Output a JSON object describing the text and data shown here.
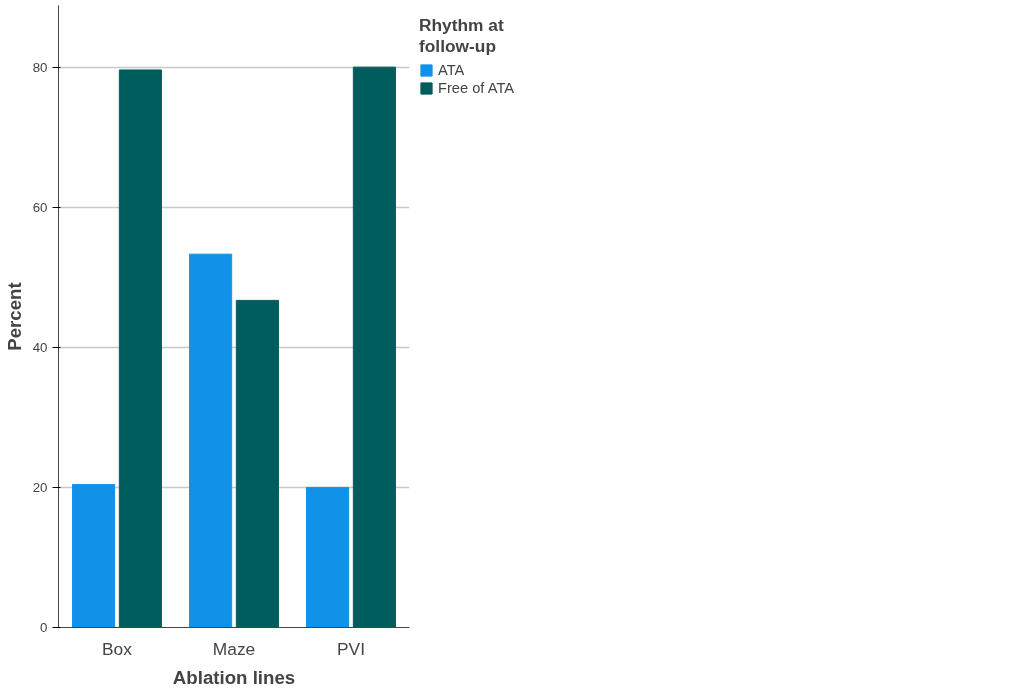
{
  "chart_data": {
    "type": "bar",
    "xlabel": "Ablation lines",
    "ylabel": "Percent",
    "legend_title": "Rhythm at\nfollow-up",
    "categories": [
      "Box",
      "Maze",
      "PVI"
    ],
    "series": [
      {
        "name": "ATA",
        "color": "#1192e8",
        "values": [
          20.4,
          53.3,
          20.0
        ]
      },
      {
        "name": "Free of ATA",
        "color": "#005d5d",
        "values": [
          79.6,
          46.7,
          80.0
        ]
      }
    ],
    "ylim": [
      0,
      88.8
    ],
    "yticks": [
      0,
      20,
      40,
      60,
      80
    ],
    "grid": "y",
    "legend": "top right"
  }
}
